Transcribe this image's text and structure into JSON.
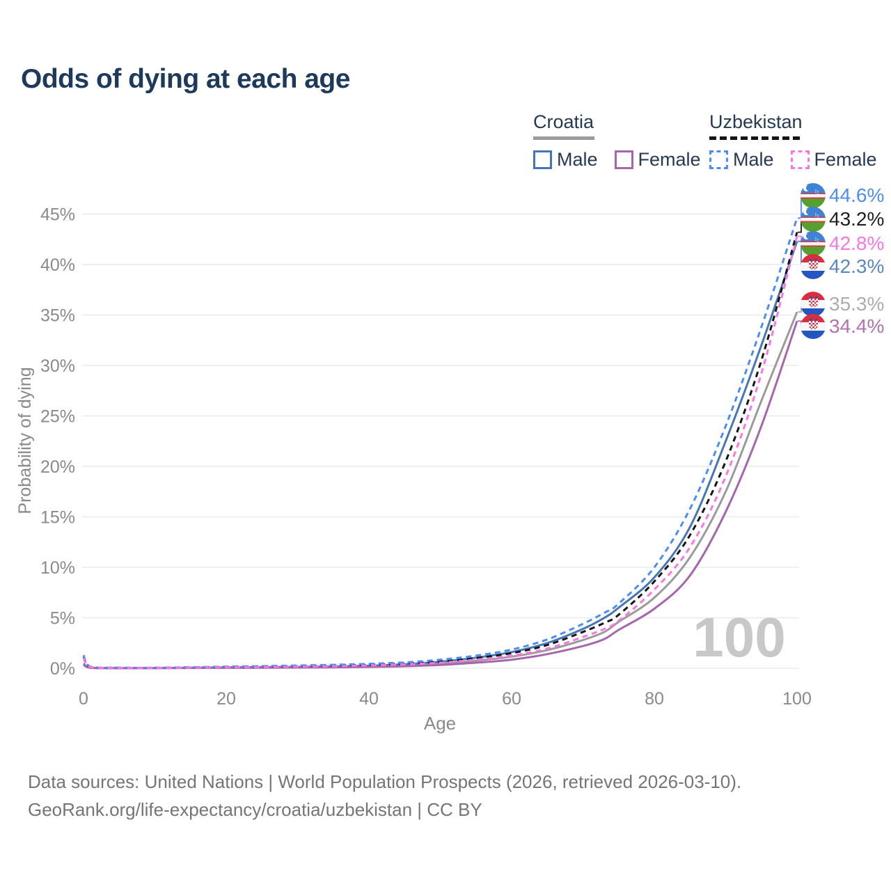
{
  "title": "Odds of dying at each age",
  "legend": {
    "croatia": {
      "label": "Croatia",
      "male": "Male",
      "female": "Female"
    },
    "uzbekistan": {
      "label": "Uzbekistan",
      "male": "Male",
      "female": "Female"
    }
  },
  "watermark": "100",
  "footer": {
    "line1": "Data sources: United Nations | World Population Prospects (2026, retrieved 2026-03-10).",
    "line2": "GeoRank.org/life-expectancy/croatia/uzbekistan | CC BY"
  },
  "chart_data": {
    "type": "line",
    "title": "Odds of dying at each age",
    "xlabel": "Age",
    "ylabel": "Probability of dying",
    "xlim": [
      0,
      100
    ],
    "ylim_pct": [
      0,
      47
    ],
    "x_ticks": [
      0,
      20,
      40,
      60,
      80,
      100
    ],
    "y_ticks": [
      "0%",
      "5%",
      "10%",
      "15%",
      "20%",
      "25%",
      "30%",
      "35%",
      "40%",
      "45%"
    ],
    "grid": "horizontal",
    "legend_position": "top-right",
    "ages": [
      0,
      1,
      5,
      10,
      15,
      20,
      25,
      30,
      35,
      40,
      45,
      50,
      55,
      60,
      65,
      70,
      73,
      75,
      80,
      85,
      90,
      95,
      100
    ],
    "series": [
      {
        "id": "croatia-total",
        "name": "Croatia",
        "country": "Croatia",
        "sex": "All",
        "style": "solid",
        "color": "#9b9b9b",
        "values_pct": [
          0.4,
          0.04,
          0.02,
          0.02,
          0.04,
          0.06,
          0.08,
          0.1,
          0.12,
          0.18,
          0.28,
          0.45,
          0.75,
          1.15,
          1.8,
          2.8,
          3.6,
          4.6,
          7.0,
          11.0,
          17.5,
          26.5,
          35.3
        ]
      },
      {
        "id": "croatia-male",
        "name": "Croatia Male",
        "country": "Croatia",
        "sex": "Male",
        "style": "solid",
        "color": "#4677b4",
        "values_pct": [
          0.45,
          0.05,
          0.02,
          0.02,
          0.05,
          0.09,
          0.11,
          0.13,
          0.17,
          0.25,
          0.4,
          0.65,
          1.05,
          1.6,
          2.5,
          3.9,
          5.0,
          6.0,
          9.0,
          14.0,
          22.5,
          32.0,
          42.3
        ]
      },
      {
        "id": "croatia-female",
        "name": "Croatia Female",
        "country": "Croatia",
        "sex": "Female",
        "style": "solid",
        "color": "#a665ad",
        "values_pct": [
          0.35,
          0.04,
          0.01,
          0.01,
          0.03,
          0.04,
          0.05,
          0.07,
          0.09,
          0.13,
          0.2,
          0.33,
          0.55,
          0.85,
          1.4,
          2.2,
          2.9,
          3.8,
          5.9,
          9.2,
          15.5,
          24.0,
          34.4
        ]
      },
      {
        "id": "uzbekistan-total",
        "name": "Uzbekistan",
        "country": "Uzbekistan",
        "sex": "All",
        "style": "dashed",
        "color": "#141414",
        "values_pct": [
          1.15,
          0.12,
          0.05,
          0.04,
          0.08,
          0.12,
          0.16,
          0.2,
          0.26,
          0.34,
          0.46,
          0.65,
          1.0,
          1.5,
          2.3,
          3.6,
          4.5,
          5.3,
          8.6,
          13.2,
          20.5,
          30.5,
          43.2
        ]
      },
      {
        "id": "uzbekistan-male",
        "name": "Uzbekistan Male",
        "country": "Uzbekistan",
        "sex": "Male",
        "style": "dashed",
        "color": "#4b8cf7",
        "values_pct": [
          1.3,
          0.15,
          0.06,
          0.05,
          0.1,
          0.16,
          0.21,
          0.27,
          0.34,
          0.44,
          0.58,
          0.85,
          1.25,
          1.85,
          2.85,
          4.4,
          5.5,
          6.4,
          10.0,
          15.8,
          24.0,
          33.8,
          44.6
        ]
      },
      {
        "id": "uzbekistan-female",
        "name": "Uzbekistan Female",
        "country": "Uzbekistan",
        "sex": "Female",
        "style": "dashed",
        "color": "#fb76e0",
        "values_pct": [
          1.0,
          0.1,
          0.04,
          0.03,
          0.06,
          0.09,
          0.12,
          0.15,
          0.2,
          0.28,
          0.38,
          0.55,
          0.85,
          1.25,
          1.95,
          3.1,
          3.9,
          4.7,
          7.8,
          12.0,
          19.0,
          29.2,
          42.8
        ]
      }
    ],
    "end_labels": [
      {
        "value": "44.6%",
        "series": "uzbekistan-male",
        "flag": "uzbekistan",
        "color": "#4b8cf7"
      },
      {
        "value": "43.2%",
        "series": "uzbekistan-total",
        "flag": "uzbekistan",
        "color": "#1f1f1f"
      },
      {
        "value": "42.8%",
        "series": "uzbekistan-female",
        "flag": "uzbekistan",
        "color": "#fb76e0"
      },
      {
        "value": "42.3%",
        "series": "croatia-male",
        "flag": "croatia",
        "color": "#5b87c0"
      },
      {
        "value": "35.3%",
        "series": "croatia-total",
        "flag": "croatia",
        "color": "#adadad"
      },
      {
        "value": "34.4%",
        "series": "croatia-female",
        "flag": "croatia",
        "color": "#af72b0"
      }
    ]
  }
}
